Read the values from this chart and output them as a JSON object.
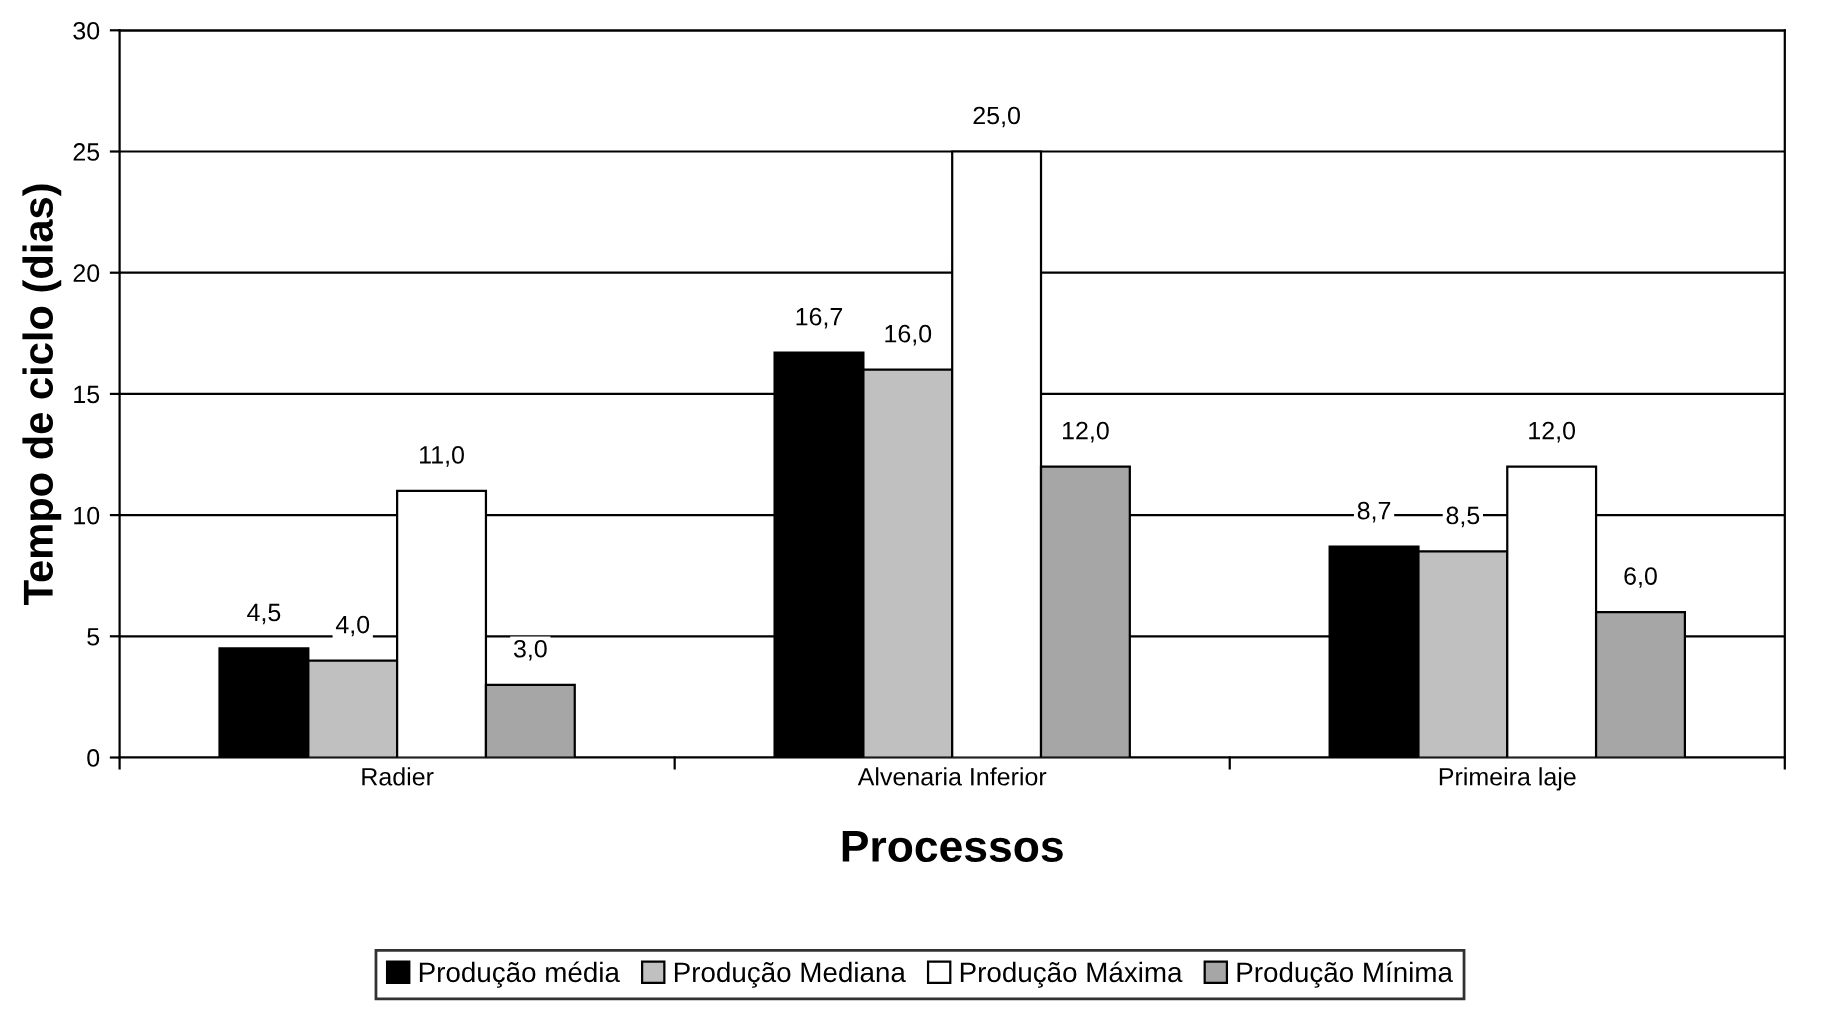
{
  "chart_data": {
    "type": "bar",
    "categories": [
      "Radier",
      "Alvenaria Inferior",
      "Primeira laje"
    ],
    "xlabel": "Processos",
    "ylabel": "Tempo de ciclo (dias)",
    "series": [
      {
        "name": "Produção média",
        "color": "#000000",
        "values": [
          4.5,
          16.7,
          8.7
        ],
        "value_labels": [
          "4,5",
          "16,7",
          "8,7"
        ]
      },
      {
        "name": "Produção Mediana",
        "color": "#c0c0c0",
        "values": [
          4.0,
          16.0,
          8.5
        ],
        "value_labels": [
          "4,0",
          "16,0",
          "8,5"
        ]
      },
      {
        "name": "Produção Máxima",
        "color": "#ffffff",
        "values": [
          11.0,
          25.0,
          12.0
        ],
        "value_labels": [
          "11,0",
          "25,0",
          "12,0"
        ]
      },
      {
        "name": "Produção Mínima",
        "color": "#a6a6a6",
        "values": [
          3.0,
          12.0,
          6.0
        ],
        "value_labels": [
          "3,0",
          "12,0",
          "6,0"
        ]
      }
    ],
    "ylim": [
      0,
      30
    ],
    "yticks": [
      0,
      5,
      10,
      15,
      20,
      25,
      30
    ],
    "grid": "y",
    "legend": "bottom"
  }
}
